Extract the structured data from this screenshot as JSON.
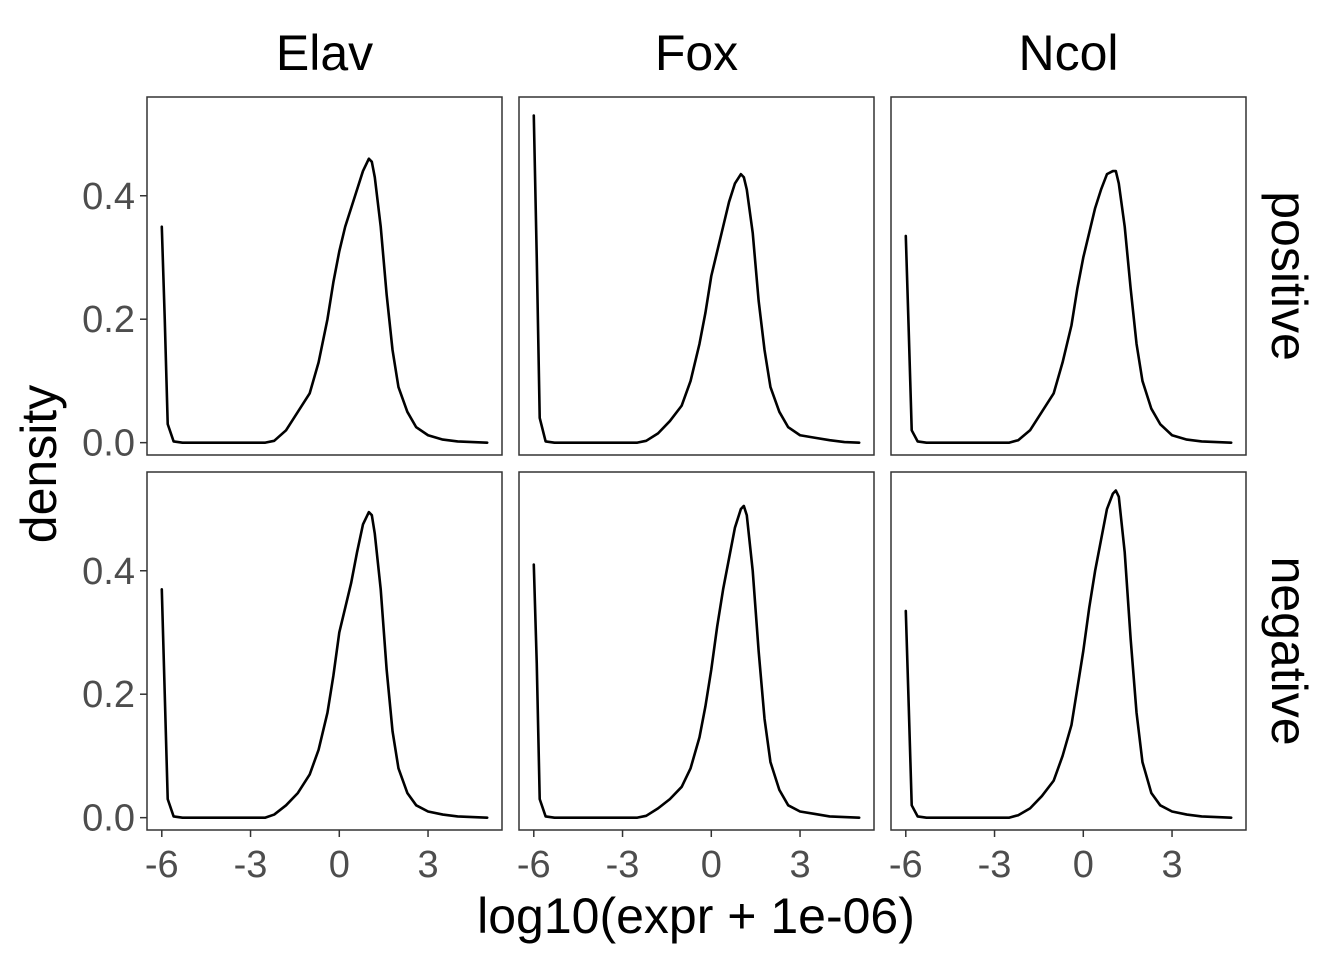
{
  "chart_data": {
    "type": "line",
    "xlabel": "log10(expr + 1e-06)",
    "ylabel": "density",
    "xlim": [
      -6.5,
      5.5
    ],
    "ylim": [
      -0.02,
      0.56
    ],
    "x_ticks": [
      -6,
      -3,
      0,
      3
    ],
    "x_tick_labels": [
      "-6",
      "-3",
      "0",
      "3"
    ],
    "y_ticks": [
      0.0,
      0.2,
      0.4
    ],
    "y_tick_labels": [
      "0.0",
      "0.2",
      "0.4"
    ],
    "grid": false,
    "columns": [
      "Elav",
      "Fox",
      "Ncol"
    ],
    "rows": [
      "positive",
      "negative"
    ],
    "panels": [
      {
        "row": "positive",
        "col": "Elav",
        "series": [
          {
            "x": [
              -6,
              -5.9,
              -5.8,
              -5.6,
              -5.3,
              -4,
              -2.5,
              -2.2,
              -1.8,
              -1.4,
              -1,
              -0.7,
              -0.4,
              -0.2,
              0,
              0.2,
              0.4,
              0.6,
              0.8,
              1,
              1.1,
              1.2,
              1.4,
              1.6,
              1.8,
              2,
              2.3,
              2.6,
              3,
              3.5,
              4,
              4.5,
              5
            ],
            "y": [
              0.35,
              0.2,
              0.03,
              0.002,
              0,
              0,
              0,
              0.003,
              0.02,
              0.05,
              0.08,
              0.13,
              0.2,
              0.26,
              0.31,
              0.35,
              0.38,
              0.41,
              0.44,
              0.46,
              0.455,
              0.43,
              0.35,
              0.24,
              0.15,
              0.09,
              0.05,
              0.025,
              0.012,
              0.005,
              0.002,
              0.001,
              0
            ]
          }
        ]
      },
      {
        "row": "positive",
        "col": "Fox",
        "series": [
          {
            "x": [
              -6,
              -5.9,
              -5.8,
              -5.6,
              -5.3,
              -4,
              -2.5,
              -2.2,
              -1.8,
              -1.4,
              -1,
              -0.7,
              -0.4,
              -0.2,
              0,
              0.2,
              0.4,
              0.6,
              0.8,
              1,
              1.1,
              1.2,
              1.4,
              1.6,
              1.8,
              2,
              2.3,
              2.6,
              3,
              3.5,
              4,
              4.5,
              5
            ],
            "y": [
              0.53,
              0.3,
              0.04,
              0.002,
              0,
              0,
              0,
              0.003,
              0.015,
              0.035,
              0.06,
              0.1,
              0.16,
              0.21,
              0.27,
              0.31,
              0.35,
              0.39,
              0.42,
              0.435,
              0.43,
              0.41,
              0.34,
              0.23,
              0.15,
              0.09,
              0.05,
              0.025,
              0.012,
              0.008,
              0.004,
              0.001,
              0
            ]
          }
        ]
      },
      {
        "row": "positive",
        "col": "Ncol",
        "series": [
          {
            "x": [
              -6,
              -5.9,
              -5.8,
              -5.6,
              -5.3,
              -4,
              -2.5,
              -2.2,
              -1.8,
              -1.4,
              -1,
              -0.7,
              -0.4,
              -0.2,
              0,
              0.2,
              0.4,
              0.6,
              0.8,
              1,
              1.1,
              1.2,
              1.4,
              1.6,
              1.8,
              2,
              2.3,
              2.6,
              3,
              3.5,
              4,
              4.5,
              5
            ],
            "y": [
              0.335,
              0.18,
              0.02,
              0.002,
              0,
              0,
              0,
              0.004,
              0.02,
              0.05,
              0.08,
              0.13,
              0.19,
              0.25,
              0.3,
              0.34,
              0.38,
              0.41,
              0.435,
              0.44,
              0.44,
              0.42,
              0.35,
              0.25,
              0.16,
              0.1,
              0.055,
              0.03,
              0.012,
              0.005,
              0.002,
              0.001,
              0
            ]
          }
        ]
      },
      {
        "row": "negative",
        "col": "Elav",
        "series": [
          {
            "x": [
              -6,
              -5.9,
              -5.8,
              -5.6,
              -5.3,
              -4,
              -2.5,
              -2.2,
              -1.8,
              -1.4,
              -1,
              -0.7,
              -0.4,
              -0.2,
              0,
              0.2,
              0.4,
              0.6,
              0.8,
              1,
              1.1,
              1.2,
              1.4,
              1.6,
              1.8,
              2,
              2.3,
              2.6,
              3,
              3.5,
              4,
              4.5,
              5
            ],
            "y": [
              0.37,
              0.2,
              0.03,
              0.002,
              0,
              0,
              0,
              0.005,
              0.02,
              0.04,
              0.07,
              0.11,
              0.17,
              0.23,
              0.3,
              0.34,
              0.38,
              0.43,
              0.475,
              0.495,
              0.49,
              0.46,
              0.37,
              0.24,
              0.14,
              0.08,
              0.04,
              0.02,
              0.01,
              0.005,
              0.002,
              0.001,
              0
            ]
          }
        ]
      },
      {
        "row": "negative",
        "col": "Fox",
        "series": [
          {
            "x": [
              -6,
              -5.9,
              -5.8,
              -5.6,
              -5.3,
              -4,
              -2.5,
              -2.2,
              -1.8,
              -1.4,
              -1,
              -0.7,
              -0.4,
              -0.2,
              0,
              0.2,
              0.4,
              0.6,
              0.8,
              1,
              1.1,
              1.2,
              1.4,
              1.6,
              1.8,
              2,
              2.3,
              2.6,
              3,
              3.5,
              4,
              4.5,
              5
            ],
            "y": [
              0.41,
              0.25,
              0.03,
              0.002,
              0,
              0,
              0,
              0.003,
              0.015,
              0.03,
              0.05,
              0.08,
              0.13,
              0.18,
              0.24,
              0.31,
              0.37,
              0.42,
              0.47,
              0.5,
              0.505,
              0.49,
              0.4,
              0.27,
              0.16,
              0.09,
              0.045,
              0.02,
              0.01,
              0.006,
              0.002,
              0.001,
              0
            ]
          }
        ]
      },
      {
        "row": "negative",
        "col": "Ncol",
        "series": [
          {
            "x": [
              -6,
              -5.9,
              -5.8,
              -5.6,
              -5.3,
              -4,
              -2.5,
              -2.2,
              -1.8,
              -1.4,
              -1,
              -0.7,
              -0.4,
              -0.2,
              0,
              0.2,
              0.4,
              0.6,
              0.8,
              1,
              1.1,
              1.2,
              1.4,
              1.6,
              1.8,
              2,
              2.3,
              2.6,
              3,
              3.5,
              4,
              4.5,
              5
            ],
            "y": [
              0.335,
              0.18,
              0.02,
              0.002,
              0,
              0,
              0,
              0.004,
              0.015,
              0.035,
              0.06,
              0.1,
              0.15,
              0.21,
              0.27,
              0.34,
              0.4,
              0.45,
              0.5,
              0.525,
              0.53,
              0.52,
              0.43,
              0.29,
              0.17,
              0.09,
              0.04,
              0.02,
              0.01,
              0.005,
              0.002,
              0.001,
              0
            ]
          }
        ]
      }
    ]
  }
}
